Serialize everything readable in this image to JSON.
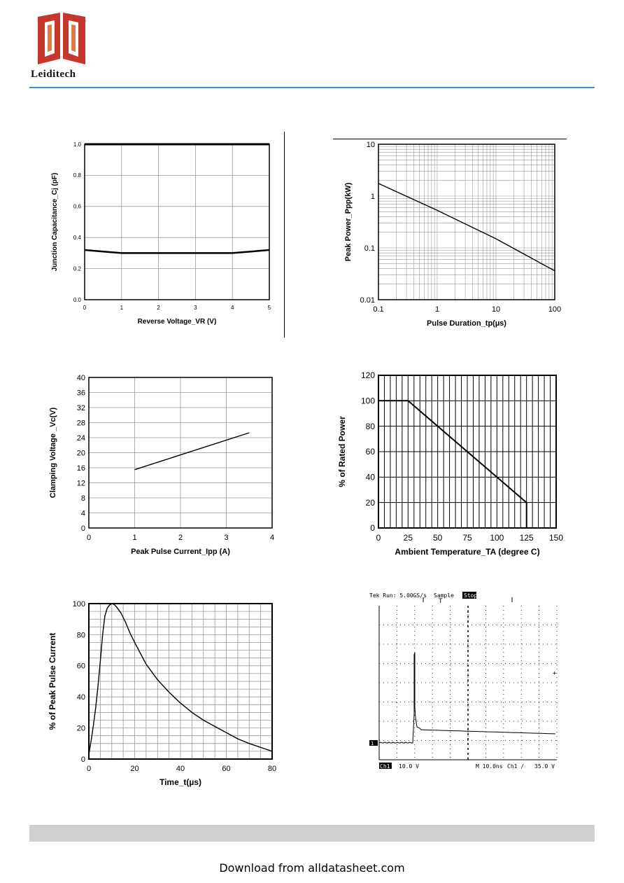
{
  "header": {
    "brand": "Leiditech",
    "registered_mark": "®"
  },
  "footer": {
    "text": "Download from alldatasheet.com"
  },
  "colors": {
    "logo_red": "#c8372d",
    "header_rule": "#2f8fd8",
    "footer_bar": "#d0d0d0"
  },
  "chart_data": [
    {
      "id": "cap",
      "type": "line",
      "xlabel": "Reverse Voltage_VR (V)",
      "ylabel": "Junction Capacitance_Cj (pF)",
      "xlim": [
        0,
        5
      ],
      "ylim": [
        0,
        1.0
      ],
      "xticks": [
        "0",
        "1",
        "2",
        "3",
        "4",
        "5"
      ],
      "yticks": [
        "0.0",
        "0.2",
        "0.4",
        "0.6",
        "0.8",
        "1.0"
      ],
      "grid": true,
      "series": [
        {
          "x": [
            0,
            0.5,
            1,
            1.5,
            2,
            2.5,
            3,
            3.5,
            4,
            4.5,
            5
          ],
          "y": [
            0.32,
            0.31,
            0.3,
            0.3,
            0.3,
            0.3,
            0.3,
            0.3,
            0.3,
            0.31,
            0.32
          ]
        }
      ]
    },
    {
      "id": "ppp",
      "type": "line",
      "xlabel": "Pulse Duration_tp(µs)",
      "ylabel": "Peak  Power_Ppp(kW)",
      "xscale": "log",
      "yscale": "log",
      "xlim": [
        0.1,
        100
      ],
      "ylim": [
        0.01,
        10
      ],
      "xticks": [
        "0.1",
        "1",
        "10",
        "100"
      ],
      "yticks": [
        "0.01",
        "0.1",
        "1",
        "10"
      ],
      "grid": true,
      "series": [
        {
          "x": [
            0.1,
            1,
            10,
            100
          ],
          "y": [
            1.75,
            0.53,
            0.15,
            0.036
          ]
        }
      ]
    },
    {
      "id": "clamp",
      "type": "line",
      "xlabel": "Peak Pulse Current_Ipp (A)",
      "ylabel": "Clamping Voltage _Vc(V)",
      "xlim": [
        0,
        4
      ],
      "ylim": [
        0,
        40
      ],
      "xticks": [
        "0",
        "1",
        "2",
        "3",
        "4"
      ],
      "yticks": [
        "0",
        "4",
        "8",
        "12",
        "16",
        "20",
        "24",
        "28",
        "32",
        "36",
        "40"
      ],
      "grid": true,
      "series": [
        {
          "x": [
            1,
            3.5
          ],
          "y": [
            15.5,
            25.3
          ]
        }
      ]
    },
    {
      "id": "derate",
      "type": "line",
      "xlabel": "Ambient  Temperature_TA (degree C)",
      "ylabel": "% of Rated Power",
      "xlim": [
        0,
        150
      ],
      "ylim": [
        0,
        120
      ],
      "xticks": [
        "0",
        "25",
        "50",
        "75",
        "100",
        "125",
        "150"
      ],
      "yticks": [
        "0",
        "20",
        "40",
        "60",
        "80",
        "100",
        "120"
      ],
      "grid": true,
      "series": [
        {
          "x": [
            0,
            25,
            125,
            125
          ],
          "y": [
            100,
            100,
            20,
            0
          ]
        }
      ]
    },
    {
      "id": "pulse",
      "type": "line",
      "xlabel": "Time_t(µs)",
      "ylabel": "% of Peak Pulse Current",
      "xlim": [
        0,
        80
      ],
      "ylim": [
        0,
        100
      ],
      "xticks": [
        "0",
        "20",
        "40",
        "60",
        "80"
      ],
      "yticks": [
        "0",
        "20",
        "40",
        "60",
        "80",
        "100"
      ],
      "grid": true,
      "series": [
        {
          "x": [
            0,
            1,
            2,
            3,
            4,
            5,
            6,
            7,
            8,
            9,
            10,
            11,
            12,
            14,
            16,
            18,
            20,
            25,
            30,
            35,
            40,
            45,
            50,
            55,
            60,
            65,
            70,
            75,
            80
          ],
          "y": [
            3,
            12,
            22,
            33,
            47,
            63,
            80,
            92,
            97,
            99,
            100,
            99.5,
            98,
            94,
            88,
            81,
            75,
            61,
            51,
            43,
            36,
            30,
            25,
            21,
            17,
            13,
            10,
            7.5,
            5
          ]
        }
      ]
    }
  ],
  "scope": {
    "header": "Tek Run: 5.00GS/s",
    "mode": "Sample",
    "stop": "Stop",
    "trigger_mark": "T",
    "ch_marker": "1",
    "ch_label": "Ch1",
    "ch_scale": "10.0 V",
    "timebase": "M 10.0ns",
    "trigger_info": "Ch1 ∕",
    "trigger_level": "35.0 V"
  }
}
